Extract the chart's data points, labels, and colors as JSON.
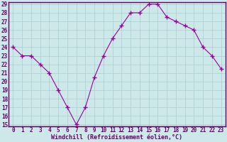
{
  "x": [
    0,
    1,
    2,
    3,
    4,
    5,
    6,
    7,
    8,
    9,
    10,
    11,
    12,
    13,
    14,
    15,
    16,
    17,
    18,
    19,
    20,
    21,
    22,
    23
  ],
  "y": [
    24,
    23,
    23,
    22,
    21,
    19,
    17,
    15,
    17,
    20.5,
    23,
    25,
    26.5,
    28,
    28,
    29,
    29,
    27.5,
    27,
    26.5,
    26,
    24,
    23,
    21.5
  ],
  "line_color": "#990099",
  "marker": "+",
  "bg_color": "#cce8e8",
  "grid_color": "#aacece",
  "xlabel": "Windchill (Refroidissement éolien,°C)",
  "ylim_min": 15,
  "ylim_max": 29,
  "xlim_min": 0,
  "xlim_max": 23,
  "yticks": [
    15,
    16,
    17,
    18,
    19,
    20,
    21,
    22,
    23,
    24,
    25,
    26,
    27,
    28,
    29
  ],
  "xticks": [
    0,
    1,
    2,
    3,
    4,
    5,
    6,
    7,
    8,
    9,
    10,
    11,
    12,
    13,
    14,
    15,
    16,
    17,
    18,
    19,
    20,
    21,
    22,
    23
  ],
  "tick_fontsize": 5.5,
  "xlabel_fontsize": 6.0,
  "axis_color": "#660066",
  "spine_color": "#660066"
}
